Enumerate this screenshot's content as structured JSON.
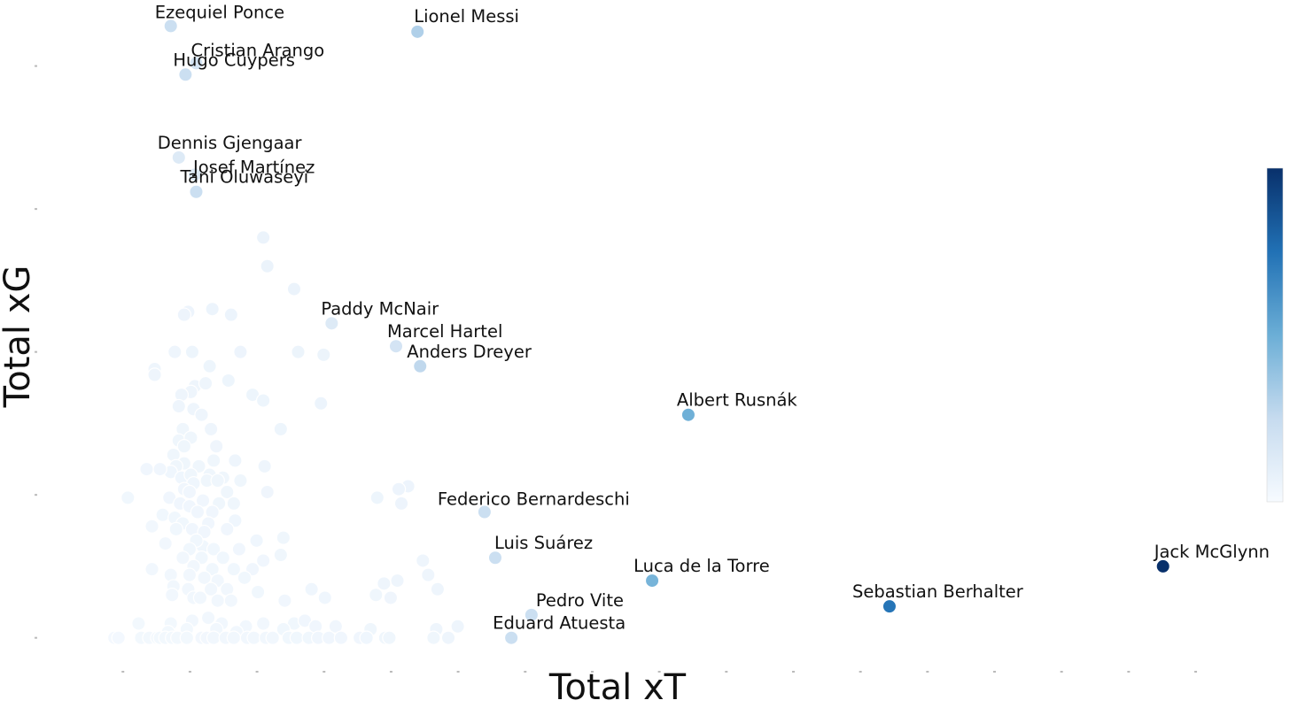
{
  "chart_data": {
    "type": "scatter",
    "xlabel": "Total xT",
    "ylabel": "Total xG",
    "xlim": [
      -1.05,
      7.85
    ],
    "ylim": [
      -0.1,
      2.2
    ],
    "grid": false,
    "legend": "none",
    "colorbar": {
      "placement": "right",
      "range": [
        0,
        0.45
      ],
      "colors": [
        "#f7fbff",
        "#c6dbef",
        "#6baed6",
        "#2171b5",
        "#08306b"
      ]
    },
    "labeled_points": [
      {
        "name": "Ezequiel Ponce",
        "x": -0.14,
        "y": 2.14,
        "c": 0.1
      },
      {
        "name": "Lionel Messi",
        "x": 1.7,
        "y": 2.12,
        "c": 0.14
      },
      {
        "name": "Cristian Arango",
        "x": 0.05,
        "y": 2.01,
        "c": 0.08
      },
      {
        "name": "Hugo Cuypers",
        "x": -0.03,
        "y": 1.97,
        "c": 0.1
      },
      {
        "name": "Dennis Gjengaar",
        "x": -0.08,
        "y": 1.68,
        "c": 0.06
      },
      {
        "name": "Josef Martínez",
        "x": 0.04,
        "y": 1.62,
        "c": 0.06
      },
      {
        "name": "Tani Oluwaseyi",
        "x": 0.05,
        "y": 1.56,
        "c": 0.1
      },
      {
        "name": "Paddy McNair",
        "x": 1.06,
        "y": 1.1,
        "c": 0.06
      },
      {
        "name": "Marcel Hartel",
        "x": 1.54,
        "y": 1.02,
        "c": 0.08
      },
      {
        "name": "Anders Dreyer",
        "x": 1.72,
        "y": 0.95,
        "c": 0.12
      },
      {
        "name": "Albert Rusnák",
        "x": 3.72,
        "y": 0.78,
        "c": 0.22
      },
      {
        "name": "Federico Bernardeschi",
        "x": 2.2,
        "y": 0.44,
        "c": 0.1
      },
      {
        "name": "Luis Suárez",
        "x": 2.28,
        "y": 0.28,
        "c": 0.1
      },
      {
        "name": "Luca de la Torre",
        "x": 3.45,
        "y": 0.2,
        "c": 0.21
      },
      {
        "name": "Jack McGlynn",
        "x": 7.26,
        "y": 0.25,
        "c": 0.45
      },
      {
        "name": "Sebastian Berhalter",
        "x": 5.22,
        "y": 0.11,
        "c": 0.33
      },
      {
        "name": "Pedro Vite",
        "x": 2.55,
        "y": 0.08,
        "c": 0.1
      },
      {
        "name": "Eduard Atuesta",
        "x": 2.4,
        "y": 0.0,
        "c": 0.1
      }
    ],
    "other_points": [
      [
        0.55,
        1.4
      ],
      [
        0.58,
        1.3
      ],
      [
        0.78,
        1.22
      ],
      [
        0.17,
        1.15
      ],
      [
        -0.01,
        1.14
      ],
      [
        0.31,
        1.13
      ],
      [
        -0.04,
        1.13
      ],
      [
        0.81,
        1.0
      ],
      [
        0.38,
        1.0
      ],
      [
        0.02,
        1.0
      ],
      [
        -0.11,
        1.0
      ],
      [
        1.0,
        0.99
      ],
      [
        -0.26,
        0.94
      ],
      [
        -0.26,
        0.92
      ],
      [
        0.15,
        0.95
      ],
      [
        0.29,
        0.9
      ],
      [
        0.04,
        0.88
      ],
      [
        0.12,
        0.89
      ],
      [
        0.47,
        0.85
      ],
      [
        0.01,
        0.86
      ],
      [
        -0.06,
        0.85
      ],
      [
        0.55,
        0.83
      ],
      [
        0.98,
        0.82
      ],
      [
        0.03,
        0.8
      ],
      [
        -0.08,
        0.81
      ],
      [
        0.09,
        0.78
      ],
      [
        0.68,
        0.73
      ],
      [
        -0.05,
        0.73
      ],
      [
        0.16,
        0.73
      ],
      [
        -0.08,
        0.69
      ],
      [
        0.01,
        0.7
      ],
      [
        0.2,
        0.67
      ],
      [
        -0.04,
        0.67
      ],
      [
        -0.12,
        0.64
      ],
      [
        -0.04,
        0.61
      ],
      [
        0.07,
        0.6
      ],
      [
        0.18,
        0.62
      ],
      [
        0.34,
        0.62
      ],
      [
        0.56,
        0.6
      ],
      [
        -0.1,
        0.6
      ],
      [
        -0.14,
        0.58
      ],
      [
        -0.06,
        0.56
      ],
      [
        0.01,
        0.57
      ],
      [
        0.15,
        0.57
      ],
      [
        0.25,
        0.56
      ],
      [
        -0.32,
        0.59
      ],
      [
        -0.22,
        0.59
      ],
      [
        0.03,
        0.54
      ],
      [
        0.13,
        0.55
      ],
      [
        0.21,
        0.55
      ],
      [
        0.38,
        0.55
      ],
      [
        -0.04,
        0.52
      ],
      [
        0.0,
        0.51
      ],
      [
        0.28,
        0.51
      ],
      [
        0.58,
        0.51
      ],
      [
        1.63,
        0.53
      ],
      [
        1.56,
        0.52
      ],
      [
        1.4,
        0.49
      ],
      [
        1.58,
        0.47
      ],
      [
        -0.46,
        0.49
      ],
      [
        -0.15,
        0.49
      ],
      [
        -0.07,
        0.47
      ],
      [
        0.0,
        0.46
      ],
      [
        0.1,
        0.48
      ],
      [
        0.22,
        0.47
      ],
      [
        0.33,
        0.47
      ],
      [
        -0.2,
        0.43
      ],
      [
        -0.11,
        0.42
      ],
      [
        0.06,
        0.44
      ],
      [
        0.17,
        0.44
      ],
      [
        -0.05,
        0.4
      ],
      [
        0.14,
        0.4
      ],
      [
        0.34,
        0.41
      ],
      [
        -0.28,
        0.39
      ],
      [
        -0.1,
        0.38
      ],
      [
        0.02,
        0.38
      ],
      [
        0.11,
        0.37
      ],
      [
        0.28,
        0.38
      ],
      [
        0.1,
        0.32
      ],
      [
        0.05,
        0.34
      ],
      [
        0.5,
        0.34
      ],
      [
        0.7,
        0.35
      ],
      [
        -0.18,
        0.33
      ],
      [
        0.0,
        0.31
      ],
      [
        0.18,
        0.31
      ],
      [
        0.37,
        0.31
      ],
      [
        -0.05,
        0.28
      ],
      [
        0.09,
        0.28
      ],
      [
        0.25,
        0.28
      ],
      [
        0.55,
        0.27
      ],
      [
        0.68,
        0.29
      ],
      [
        0.03,
        0.25
      ],
      [
        0.17,
        0.24
      ],
      [
        0.33,
        0.24
      ],
      [
        0.47,
        0.24
      ],
      [
        -0.28,
        0.24
      ],
      [
        0.0,
        0.22
      ],
      [
        0.11,
        0.21
      ],
      [
        0.21,
        0.2
      ],
      [
        0.41,
        0.21
      ],
      [
        -0.14,
        0.22
      ],
      [
        -0.12,
        0.18
      ],
      [
        -0.01,
        0.17
      ],
      [
        0.16,
        0.17
      ],
      [
        0.28,
        0.17
      ],
      [
        0.51,
        0.16
      ],
      [
        0.91,
        0.17
      ],
      [
        1.45,
        0.19
      ],
      [
        1.55,
        0.2
      ],
      [
        1.85,
        0.17
      ],
      [
        1.78,
        0.22
      ],
      [
        1.74,
        0.27
      ],
      [
        0.03,
        0.14
      ],
      [
        -0.13,
        0.15
      ],
      [
        0.08,
        0.14
      ],
      [
        0.21,
        0.13
      ],
      [
        0.31,
        0.13
      ],
      [
        0.71,
        0.13
      ],
      [
        1.01,
        0.14
      ],
      [
        1.39,
        0.15
      ],
      [
        1.5,
        0.14
      ],
      [
        -0.38,
        0.05
      ],
      [
        -0.14,
        0.05
      ],
      [
        0.02,
        0.06
      ],
      [
        0.14,
        0.07
      ],
      [
        0.24,
        0.05
      ],
      [
        0.42,
        0.04
      ],
      [
        0.55,
        0.05
      ],
      [
        0.78,
        0.05
      ],
      [
        0.86,
        0.06
      ],
      [
        0.94,
        0.04
      ],
      [
        1.09,
        0.04
      ],
      [
        1.35,
        0.03
      ],
      [
        1.84,
        0.03
      ],
      [
        2.0,
        0.04
      ],
      [
        -0.16,
        0.02
      ],
      [
        -0.02,
        0.03
      ],
      [
        0.2,
        0.03
      ],
      [
        0.35,
        0.02
      ],
      [
        0.7,
        0.03
      ],
      [
        -0.56,
        0.0
      ],
      [
        -0.53,
        0.0
      ],
      [
        -0.36,
        0.0
      ],
      [
        -0.3,
        0.0
      ],
      [
        -0.24,
        0.0
      ],
      [
        -0.22,
        0.0
      ],
      [
        -0.18,
        0.0
      ],
      [
        -0.13,
        0.0
      ],
      [
        -0.09,
        0.0
      ],
      [
        -0.02,
        0.0
      ],
      [
        0.09,
        0.0
      ],
      [
        0.13,
        0.0
      ],
      [
        0.18,
        0.0
      ],
      [
        0.27,
        0.0
      ],
      [
        0.33,
        0.0
      ],
      [
        0.43,
        0.0
      ],
      [
        0.48,
        0.0
      ],
      [
        0.57,
        0.0
      ],
      [
        0.62,
        0.0
      ],
      [
        0.74,
        0.0
      ],
      [
        0.8,
        0.0
      ],
      [
        0.89,
        0.0
      ],
      [
        0.96,
        0.0
      ],
      [
        1.04,
        0.0
      ],
      [
        1.13,
        0.0
      ],
      [
        1.27,
        0.0
      ],
      [
        1.32,
        0.0
      ],
      [
        1.46,
        0.0
      ],
      [
        1.49,
        0.0
      ],
      [
        1.82,
        0.0
      ],
      [
        1.93,
        0.0
      ]
    ]
  }
}
